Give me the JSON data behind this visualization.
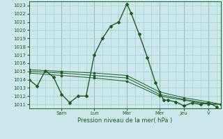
{
  "xlabel": "Pression niveau de la mer( hPa )",
  "ylim": [
    1010.5,
    1023.5
  ],
  "yticks": [
    1011,
    1012,
    1013,
    1014,
    1015,
    1016,
    1017,
    1018,
    1019,
    1020,
    1021,
    1022,
    1023
  ],
  "background_color": "#cce8ea",
  "grid_color": "#99cccc",
  "line_color": "#1a5e20",
  "day_labels": [
    "Sam",
    "Lun",
    "Mar",
    "Mer",
    "Jeu",
    "V"
  ],
  "day_tick_x": [
    24,
    48,
    72,
    96,
    114,
    132
  ],
  "xlim": [
    0,
    141
  ],
  "series_spike": {
    "x": [
      0,
      6,
      12,
      18,
      24,
      30,
      36,
      42,
      48,
      54,
      60,
      66,
      72,
      75,
      81,
      87,
      93,
      99,
      102,
      108,
      114,
      120,
      126,
      132,
      138
    ],
    "y": [
      1014.0,
      1013.2,
      1015.1,
      1014.3,
      1012.2,
      1011.2,
      1012.0,
      1012.0,
      1017.0,
      1019.0,
      1020.5,
      1021.0,
      1023.2,
      1022.1,
      1019.5,
      1016.7,
      1013.6,
      1011.5,
      1011.5,
      1011.3,
      1010.8,
      1011.2,
      1011.0,
      1011.2,
      1010.7
    ]
  },
  "series_flat1": {
    "x": [
      0,
      24,
      48,
      72,
      96,
      114,
      132,
      141
    ],
    "y": [
      1014.8,
      1014.5,
      1014.2,
      1013.8,
      1012.0,
      1011.5,
      1011.0,
      1011.0
    ]
  },
  "series_flat2": {
    "x": [
      0,
      24,
      48,
      72,
      96,
      114,
      132,
      141
    ],
    "y": [
      1015.0,
      1014.8,
      1014.5,
      1014.2,
      1012.2,
      1011.6,
      1011.1,
      1011.0
    ]
  },
  "series_flat3": {
    "x": [
      0,
      24,
      48,
      72,
      96,
      114,
      132,
      141
    ],
    "y": [
      1015.2,
      1015.0,
      1014.8,
      1014.5,
      1012.5,
      1011.8,
      1011.3,
      1011.0
    ]
  }
}
